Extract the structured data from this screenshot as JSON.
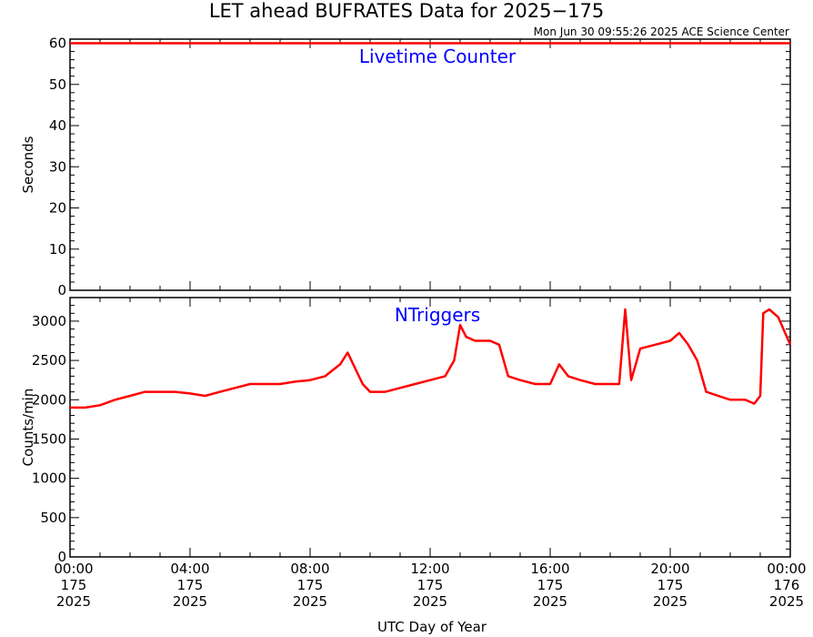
{
  "header": {
    "title": "LET ahead BUFRATES Data for 2025−175",
    "timestamp": "Mon Jun 30 09:55:26 2025 ACE Science Center"
  },
  "chart_data": [
    {
      "type": "line",
      "label": "Livetime Counter",
      "ylabel": "Seconds",
      "ylim": [
        0,
        61
      ],
      "yticks": [
        0,
        10,
        20,
        30,
        40,
        50,
        60
      ],
      "xlim": [
        0,
        24
      ],
      "color": "#ff0000",
      "label_color": "#0000ff",
      "series": [
        {
          "x": [
            0,
            24
          ],
          "y": [
            60,
            60
          ]
        }
      ]
    },
    {
      "type": "line",
      "label": "NTriggers",
      "ylabel": "Counts/min",
      "ylim": [
        0,
        3300
      ],
      "yticks": [
        0,
        500,
        1000,
        1500,
        2000,
        2500,
        3000
      ],
      "xlim": [
        0,
        24
      ],
      "color": "#ff0000",
      "label_color": "#0000ff",
      "series": [
        {
          "x": [
            0,
            0.5,
            1,
            1.5,
            2,
            2.5,
            3,
            3.5,
            4,
            4.5,
            5,
            5.5,
            6,
            6.5,
            7,
            7.5,
            8,
            8.5,
            9,
            9.25,
            9.5,
            9.75,
            10,
            10.5,
            11,
            11.5,
            12,
            12.5,
            12.8,
            13,
            13.2,
            13.5,
            14,
            14.3,
            14.6,
            15,
            15.5,
            16,
            16.3,
            16.6,
            17,
            17.5,
            18,
            18.3,
            18.5,
            18.7,
            19,
            19.5,
            20,
            20.3,
            20.6,
            20.9,
            21.2,
            21.6,
            22,
            22.5,
            22.8,
            23,
            23.1,
            23.3,
            23.6,
            24
          ],
          "y": [
            1900,
            1900,
            1930,
            2000,
            2050,
            2100,
            2100,
            2100,
            2080,
            2050,
            2100,
            2150,
            2200,
            2200,
            2200,
            2230,
            2250,
            2300,
            2450,
            2600,
            2400,
            2200,
            2100,
            2100,
            2150,
            2200,
            2250,
            2300,
            2500,
            2950,
            2800,
            2750,
            2750,
            2700,
            2300,
            2250,
            2200,
            2200,
            2450,
            2300,
            2250,
            2200,
            2200,
            2200,
            3150,
            2250,
            2650,
            2700,
            2750,
            2850,
            2700,
            2500,
            2100,
            2050,
            2000,
            2000,
            1950,
            2050,
            3100,
            3150,
            3050,
            2700
          ]
        }
      ]
    }
  ],
  "x_axis": {
    "label": "UTC Day of Year",
    "ticks": [
      {
        "time": "00:00",
        "doy": "175",
        "year": "2025"
      },
      {
        "time": "04:00",
        "doy": "175",
        "year": "2025"
      },
      {
        "time": "08:00",
        "doy": "175",
        "year": "2025"
      },
      {
        "time": "12:00",
        "doy": "175",
        "year": "2025"
      },
      {
        "time": "16:00",
        "doy": "175",
        "year": "2025"
      },
      {
        "time": "20:00",
        "doy": "175",
        "year": "2025"
      },
      {
        "time": "00:00",
        "doy": "176",
        "year": "2025"
      }
    ]
  }
}
